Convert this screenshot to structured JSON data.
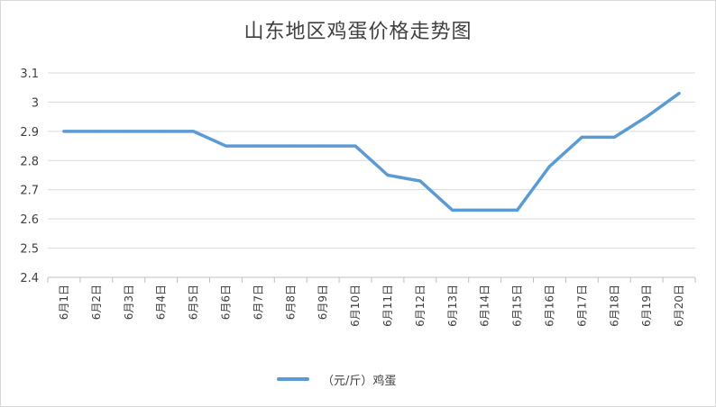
{
  "chart_data": {
    "type": "line",
    "title": "山东地区鸡蛋价格走势图",
    "categories": [
      "6月1日",
      "6月2日",
      "6月3日",
      "6月4日",
      "6月5日",
      "6月6日",
      "6月7日",
      "6月8日",
      "6月9日",
      "6月10日",
      "6月11日",
      "6月12日",
      "6月13日",
      "6月14日",
      "6月15日",
      "6月16日",
      "6月17日",
      "6月18日",
      "6月19日",
      "6月20日"
    ],
    "series": [
      {
        "name": "（元/斤）鸡蛋",
        "color": "#5b9bd5",
        "values": [
          2.9,
          2.9,
          2.9,
          2.9,
          2.9,
          2.85,
          2.85,
          2.85,
          2.85,
          2.85,
          2.75,
          2.73,
          2.63,
          2.63,
          2.63,
          2.78,
          2.88,
          2.88,
          2.95,
          3.03
        ]
      }
    ],
    "yticks": [
      "2.4",
      "2.5",
      "2.6",
      "2.7",
      "2.8",
      "2.9",
      "3",
      "3.1"
    ],
    "ylim": [
      2.4,
      3.1
    ],
    "grid": true,
    "legend": "bottom"
  }
}
